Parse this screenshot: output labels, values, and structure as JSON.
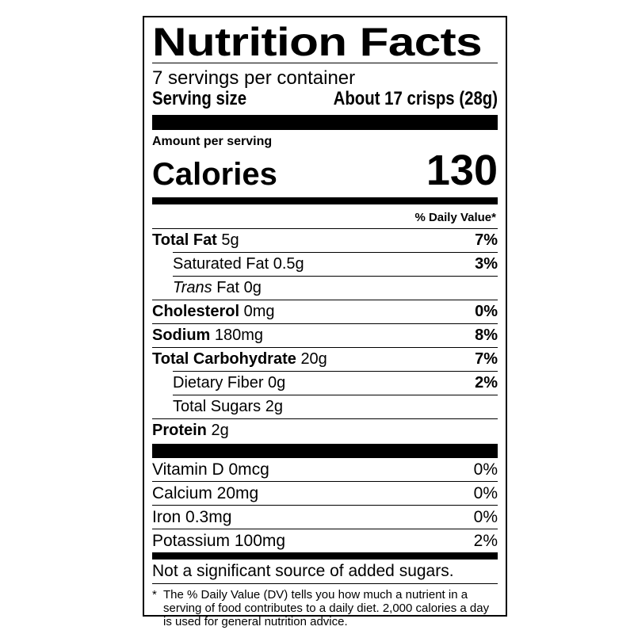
{
  "title": "Nutrition Facts",
  "servings_per_container": "7 servings per container",
  "serving_size_label": "Serving size",
  "serving_size_value": "About 17 crisps (28g)",
  "amount_per_serving": "Amount per serving",
  "calories_label": "Calories",
  "calories_value": "130",
  "daily_value_header": "% Daily Value*",
  "nutrients": [
    {
      "name": "Total Fat",
      "amount": "5g",
      "dv": "7%",
      "bold": true,
      "indent": false
    },
    {
      "name": "Saturated Fat",
      "amount": "0.5g",
      "dv": "3%",
      "bold": false,
      "indent": true
    },
    {
      "name_italic": "Trans",
      "name": "Fat",
      "amount": "0g",
      "dv": "",
      "bold": false,
      "indent": true
    },
    {
      "name": "Cholesterol",
      "amount": "0mg",
      "dv": "0%",
      "bold": true,
      "indent": false
    },
    {
      "name": "Sodium",
      "amount": "180mg",
      "dv": "8%",
      "bold": true,
      "indent": false
    },
    {
      "name": "Total Carbohydrate",
      "amount": "20g",
      "dv": "7%",
      "bold": true,
      "indent": false
    },
    {
      "name": "Dietary Fiber",
      "amount": "0g",
      "dv": "2%",
      "bold": false,
      "indent": true
    },
    {
      "name": "Total Sugars",
      "amount": "2g",
      "dv": "",
      "bold": false,
      "indent": true
    },
    {
      "name": "Protein",
      "amount": "2g",
      "dv": "",
      "bold": true,
      "indent": false
    }
  ],
  "vitamins": [
    {
      "label": "Vitamin D 0mcg",
      "dv": "0%"
    },
    {
      "label": "Calcium 20mg",
      "dv": "0%"
    },
    {
      "label": "Iron 0.3mg",
      "dv": "0%"
    },
    {
      "label": "Potassium 100mg",
      "dv": "2%"
    }
  ],
  "added_sugars_note": "Not a significant source of added sugars.",
  "footnote_star": "*",
  "footnote": "The % Daily Value (DV) tells you how much a nutrient in a serving of food contributes to a daily diet. 2,000 calories a day is used for general nutrition advice."
}
